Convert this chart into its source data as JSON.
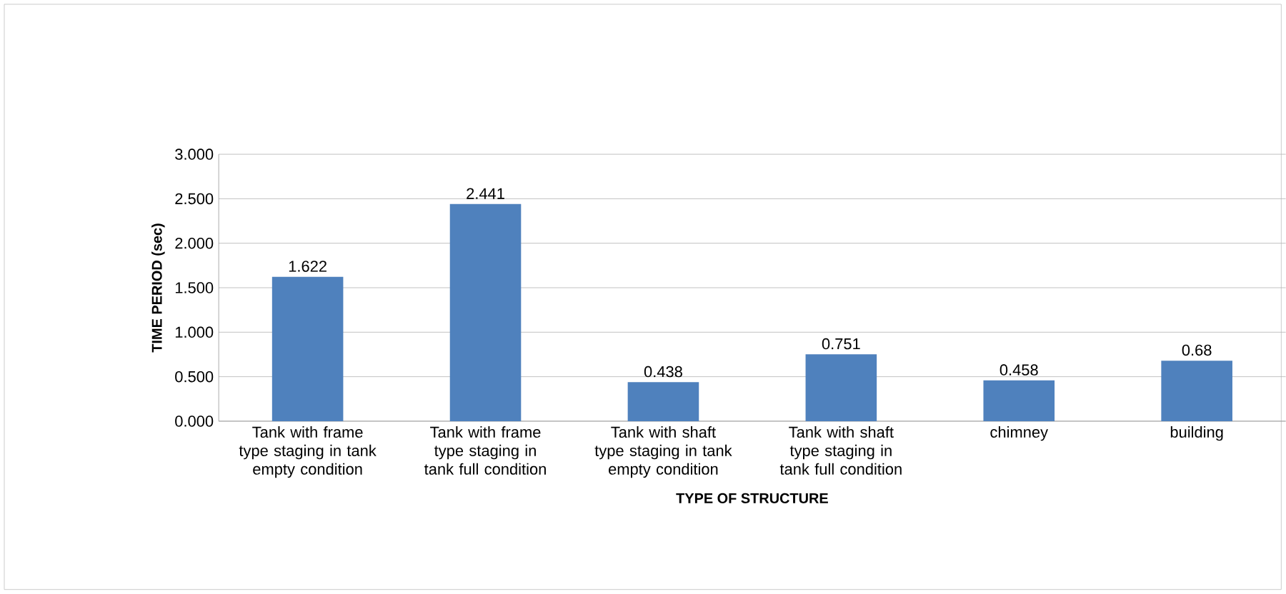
{
  "chart_data": {
    "type": "bar",
    "xlabel": "TYPE OF STRUCTURE",
    "ylabel": "TIME PERIOD (sec)",
    "categories": [
      "Tank with frame type staging in tank empty condition",
      "Tank with frame type staging in tank full condition",
      "Tank with shaft type staging in tank empty condition",
      "Tank with shaft type staging in tank full condition",
      "chimney",
      "building"
    ],
    "values": [
      1.622,
      2.441,
      0.438,
      0.751,
      0.458,
      0.68
    ],
    "value_labels": [
      "1.622",
      "2.441",
      "0.438",
      "0.751",
      "0.458",
      "0.68"
    ],
    "color": "#4f81bd",
    "ylim": [
      0,
      3
    ],
    "yticks": [
      {
        "value": 0,
        "label": "0.000"
      },
      {
        "value": 0.5,
        "label": "0.500"
      },
      {
        "value": 1,
        "label": "1.000"
      },
      {
        "value": 1.5,
        "label": "1.500"
      },
      {
        "value": 2,
        "label": "2.000"
      },
      {
        "value": 2.5,
        "label": "2.500"
      },
      {
        "value": 3,
        "label": "3.000"
      }
    ],
    "grid": "y"
  }
}
